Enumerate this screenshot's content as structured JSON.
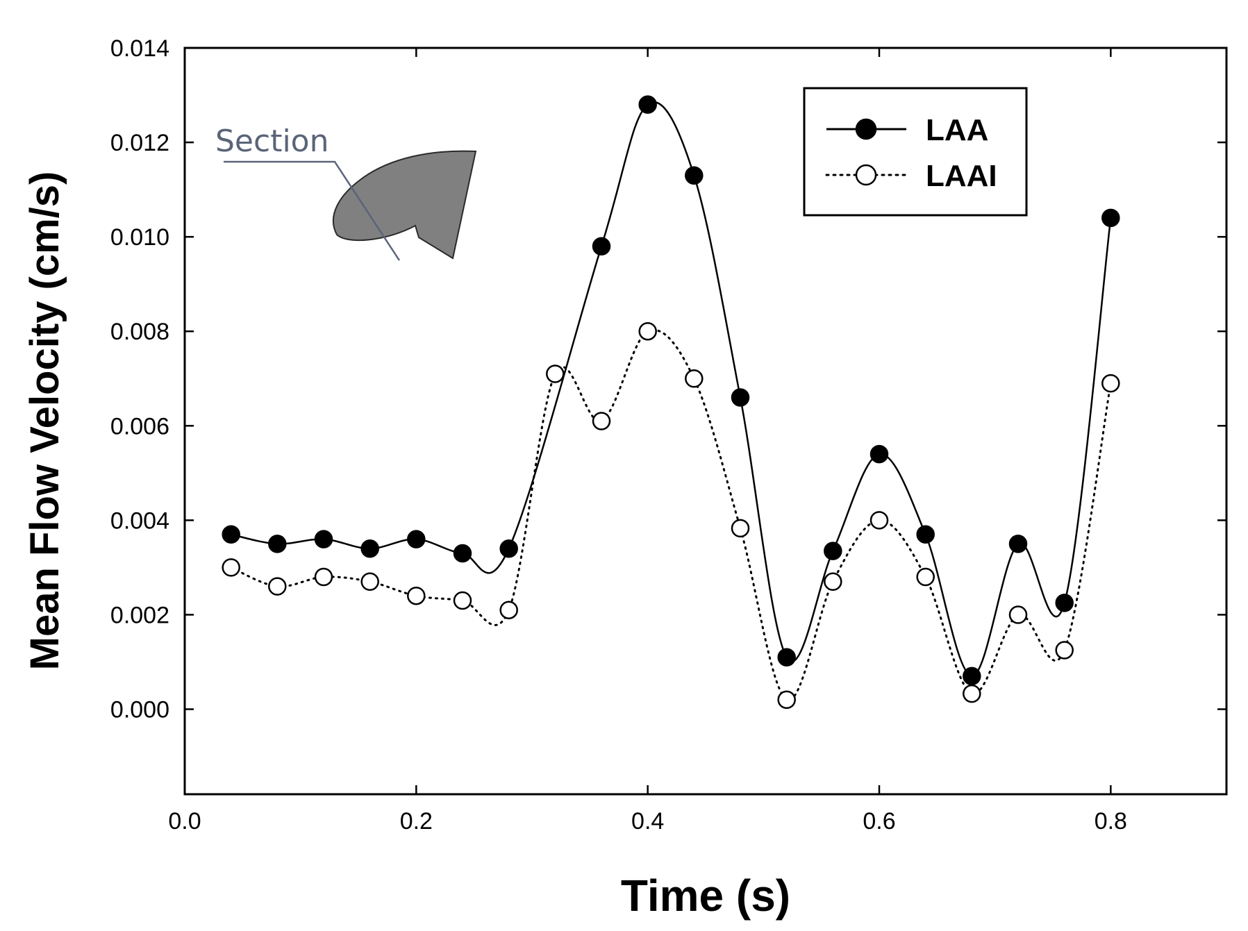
{
  "chart_data": {
    "type": "line",
    "xlabel": "Time (s)",
    "ylabel": "Mean Flow Velocity (cm/s)",
    "xlim": [
      0.0,
      0.9
    ],
    "ylim": [
      -0.0018,
      0.014
    ],
    "xticks": [
      0.0,
      0.2,
      0.4,
      0.6,
      0.8
    ],
    "xtick_labels": [
      "0.0",
      "0.2",
      "0.4",
      "0.6",
      "0.8"
    ],
    "yticks": [
      0.0,
      0.002,
      0.004,
      0.006,
      0.008,
      0.01,
      0.012,
      0.014
    ],
    "ytick_labels": [
      "0.000",
      "0.002",
      "0.004",
      "0.006",
      "0.008",
      "0.010",
      "0.012",
      "0.014"
    ],
    "grid": false,
    "legend_position": "top-right",
    "x": [
      0.04,
      0.08,
      0.12,
      0.16,
      0.2,
      0.24,
      0.28,
      0.32,
      0.36,
      0.4,
      0.44,
      0.48,
      0.52,
      0.56,
      0.6,
      0.64,
      0.68,
      0.72,
      0.76,
      0.8
    ],
    "series": [
      {
        "name": "LAA",
        "marker": "filled-circle",
        "line_style": "solid",
        "color": "#000000",
        "values": [
          0.0037,
          0.0035,
          0.0036,
          0.0034,
          0.0036,
          0.0033,
          0.0034,
          null,
          0.0098,
          0.0128,
          0.0113,
          0.0066,
          0.0011,
          0.00335,
          0.0054,
          0.0037,
          0.0007,
          0.0035,
          0.00225,
          0.0104
        ]
      },
      {
        "name": "LAAI",
        "marker": "open-circle",
        "line_style": "dotted",
        "color": "#000000",
        "values": [
          0.003,
          0.0026,
          0.0028,
          0.0027,
          0.0024,
          0.0023,
          0.0021,
          0.0071,
          0.0061,
          0.008,
          0.007,
          0.00383,
          0.0002,
          0.0027,
          0.004,
          0.0028,
          0.00033,
          0.002,
          0.00125,
          0.0069
        ]
      }
    ],
    "annotations": [
      {
        "text": "Section"
      }
    ]
  }
}
